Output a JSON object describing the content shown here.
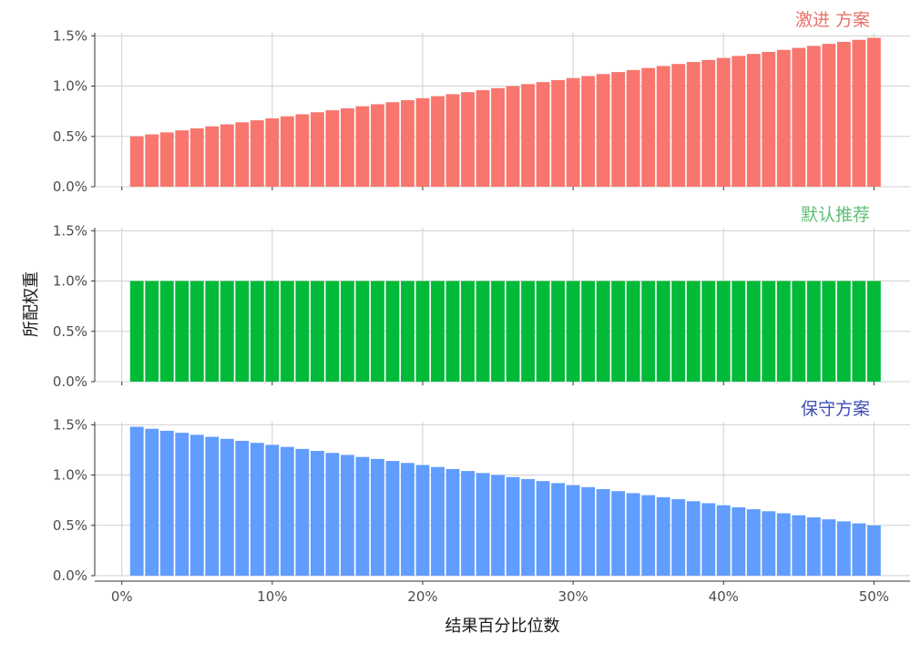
{
  "chart_data": {
    "type": "bar",
    "layout": "faceted-vertical",
    "xlabel": "结果百分比位数",
    "ylabel": "所配权重",
    "x_ticks": [
      "0%",
      "10%",
      "20%",
      "30%",
      "40%",
      "50%"
    ],
    "x_tick_values": [
      0,
      10,
      20,
      30,
      40,
      50
    ],
    "y_ticks": [
      "0.0%",
      "0.5%",
      "1.0%",
      "1.5%"
    ],
    "y_tick_values": [
      0,
      0.5,
      1.0,
      1.5
    ],
    "xlim": [
      -1.8,
      52.4
    ],
    "ylim": [
      0,
      1.53
    ],
    "grid": true,
    "bar_x_start": 1,
    "bar_x_end": 50,
    "bar_count": 50,
    "panels": [
      {
        "label": "激进 方案",
        "color": "#F8766D",
        "label_color": "#E8716A",
        "values": [
          0.5,
          0.52,
          0.54,
          0.56,
          0.58,
          0.6,
          0.62,
          0.64,
          0.66,
          0.68,
          0.7,
          0.72,
          0.74,
          0.76,
          0.78,
          0.8,
          0.82,
          0.84,
          0.86,
          0.88,
          0.9,
          0.92,
          0.94,
          0.96,
          0.98,
          1.0,
          1.02,
          1.04,
          1.06,
          1.08,
          1.1,
          1.12,
          1.14,
          1.16,
          1.18,
          1.2,
          1.22,
          1.24,
          1.26,
          1.28,
          1.3,
          1.32,
          1.34,
          1.36,
          1.38,
          1.4,
          1.42,
          1.44,
          1.46,
          1.48
        ]
      },
      {
        "label": "默认推荐",
        "color": "#00BA38",
        "label_color": "#5FBF75",
        "values": [
          1.0,
          1.0,
          1.0,
          1.0,
          1.0,
          1.0,
          1.0,
          1.0,
          1.0,
          1.0,
          1.0,
          1.0,
          1.0,
          1.0,
          1.0,
          1.0,
          1.0,
          1.0,
          1.0,
          1.0,
          1.0,
          1.0,
          1.0,
          1.0,
          1.0,
          1.0,
          1.0,
          1.0,
          1.0,
          1.0,
          1.0,
          1.0,
          1.0,
          1.0,
          1.0,
          1.0,
          1.0,
          1.0,
          1.0,
          1.0,
          1.0,
          1.0,
          1.0,
          1.0,
          1.0,
          1.0,
          1.0,
          1.0,
          1.0,
          1.0
        ]
      },
      {
        "label": "保守方案",
        "color": "#619CFF",
        "label_color": "#3F4FB5",
        "values": [
          1.48,
          1.46,
          1.44,
          1.42,
          1.4,
          1.38,
          1.36,
          1.34,
          1.32,
          1.3,
          1.28,
          1.26,
          1.24,
          1.22,
          1.2,
          1.18,
          1.16,
          1.14,
          1.12,
          1.1,
          1.08,
          1.06,
          1.04,
          1.02,
          1.0,
          0.98,
          0.96,
          0.94,
          0.92,
          0.9,
          0.88,
          0.86,
          0.84,
          0.82,
          0.8,
          0.78,
          0.76,
          0.74,
          0.72,
          0.7,
          0.68,
          0.66,
          0.64,
          0.62,
          0.6,
          0.58,
          0.56,
          0.54,
          0.52,
          0.5
        ]
      }
    ]
  }
}
